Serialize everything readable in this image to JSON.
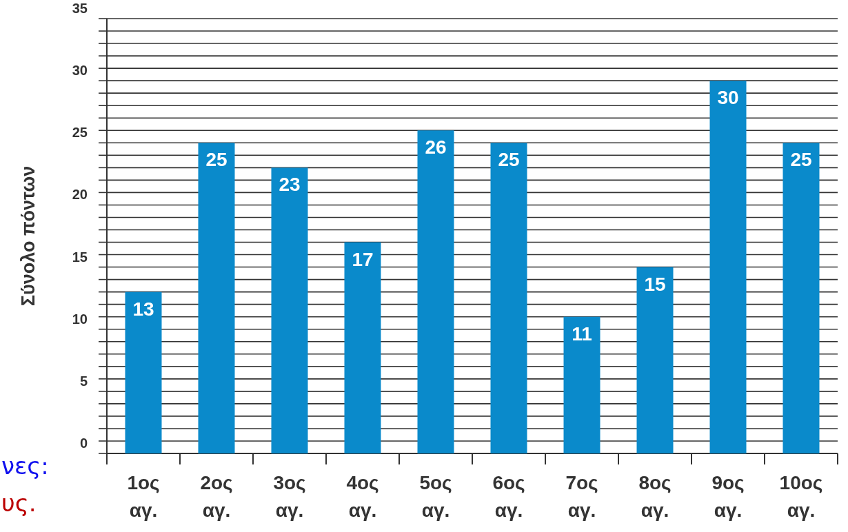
{
  "chart_data": {
    "type": "bar",
    "ylabel": "Σύνολο πόντων",
    "categories": [
      "1ος αγ.",
      "2ος αγ.",
      "3ος αγ.",
      "4ος αγ.",
      "5ος αγ.",
      "6ος αγ.",
      "7ος αγ.",
      "8ος αγ.",
      "9ος αγ.",
      "10ος αγ."
    ],
    "values": [
      13,
      25,
      23,
      17,
      26,
      25,
      11,
      15,
      30,
      25
    ],
    "color": "#0a8acb",
    "ylim": [
      0,
      35
    ],
    "yticks": [
      0,
      {
        "value": 1,
        "label": null
      },
      {
        "value": 2,
        "label": null
      },
      {
        "value": 3,
        "label": null
      },
      {
        "value": 4,
        "label": null
      },
      5,
      {
        "value": 6,
        "label": null
      },
      {
        "value": 7,
        "label": null
      },
      {
        "value": 8,
        "label": null
      },
      {
        "value": 9,
        "label": null
      },
      10,
      {
        "value": 11,
        "label": null
      },
      {
        "value": 12,
        "label": null
      },
      {
        "value": 13,
        "label": null
      },
      {
        "value": 14,
        "label": null
      },
      15,
      {
        "value": 16,
        "label": null
      },
      {
        "value": 17,
        "label": null
      },
      {
        "value": 18,
        "label": null
      },
      {
        "value": 19,
        "label": null
      },
      20,
      {
        "value": 21,
        "label": null
      },
      {
        "value": 22,
        "label": null
      },
      {
        "value": 23,
        "label": null
      },
      {
        "value": 24,
        "label": null
      },
      25,
      {
        "value": 26,
        "label": null
      },
      {
        "value": 27,
        "label": null
      },
      {
        "value": 28,
        "label": null
      },
      {
        "value": 29,
        "label": null
      },
      30,
      {
        "value": 31,
        "label": null
      },
      {
        "value": 32,
        "label": null
      },
      {
        "value": 33,
        "label": null
      },
      {
        "value": 34,
        "label": null
      },
      35
    ],
    "grid": "y",
    "data_labels": true,
    "annotations": [
      "νες:",
      "υς."
    ]
  }
}
